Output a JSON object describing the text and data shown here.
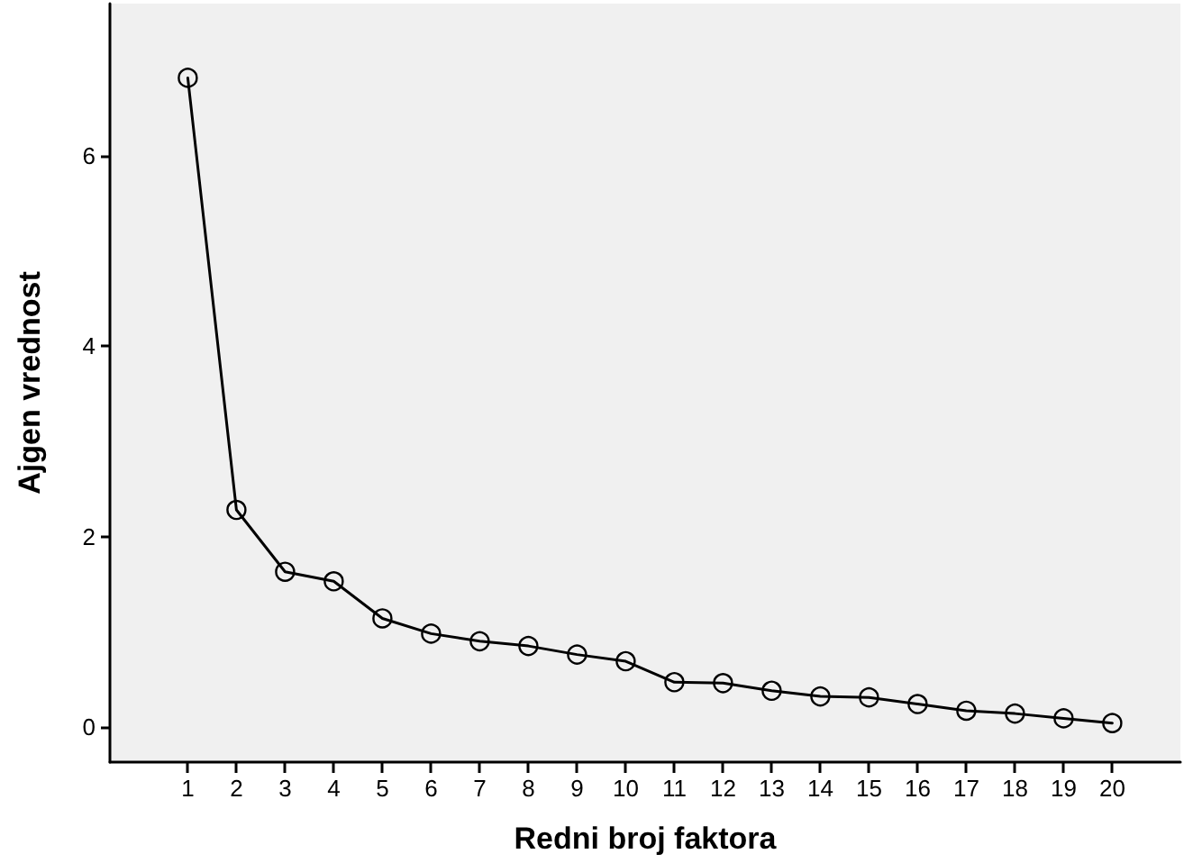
{
  "chart_data": {
    "type": "line",
    "xlabel": "Redni broj faktora",
    "ylabel": "Ajgen vrednost",
    "x": [
      1,
      2,
      3,
      4,
      5,
      6,
      7,
      8,
      9,
      10,
      11,
      12,
      13,
      14,
      15,
      16,
      17,
      18,
      19,
      20
    ],
    "series": [
      {
        "color": "#000000",
        "values": [
          6.82,
          2.28,
          1.63,
          1.53,
          1.14,
          0.98,
          0.9,
          0.85,
          0.76,
          0.69,
          0.47,
          0.46,
          0.38,
          0.32,
          0.31,
          0.24,
          0.17,
          0.14,
          0.09,
          0.04
        ]
      }
    ],
    "xlim": [
      -0.6,
      21.4
    ],
    "xticks": [
      1,
      2,
      3,
      4,
      5,
      6,
      7,
      8,
      9,
      10,
      11,
      12,
      13,
      14,
      15,
      16,
      17,
      18,
      19,
      20
    ],
    "ylim": [
      -0.37,
      7.6
    ],
    "yticks": [
      0,
      2,
      4,
      6
    ],
    "marker": "circle",
    "line_style": "solid",
    "grid": false
  }
}
